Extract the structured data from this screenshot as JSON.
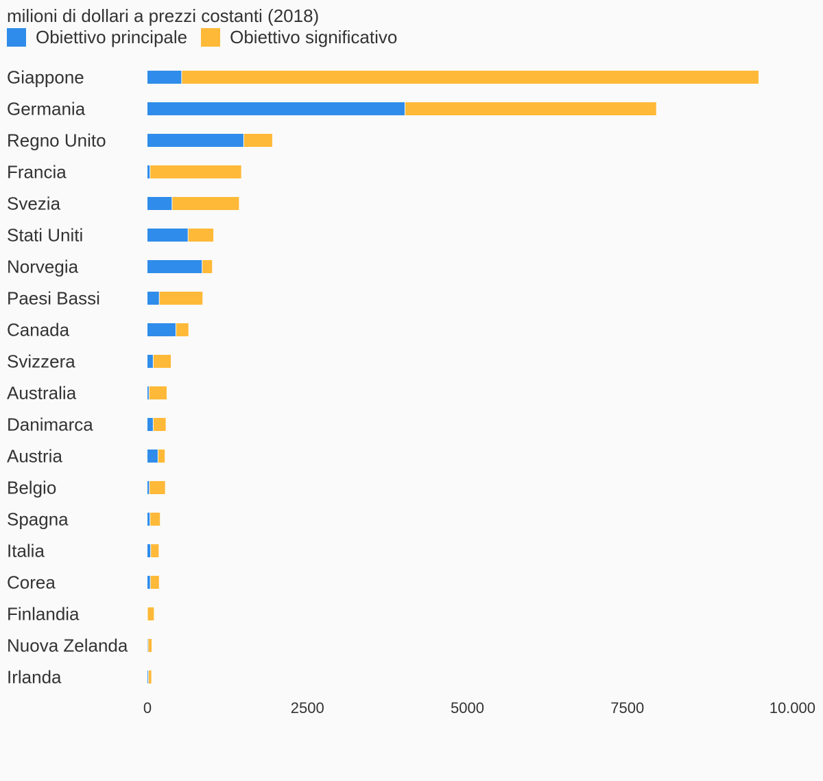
{
  "chart_data": {
    "type": "bar",
    "orientation": "horizontal",
    "stacked": true,
    "title": "milioni di dollari a prezzi costanti (2018)",
    "legend_position": "top-left",
    "grid": false,
    "categories": [
      "Giappone",
      "Germania",
      "Regno Unito",
      "Francia",
      "Svezia",
      "Stati Uniti",
      "Norvegia",
      "Paesi Bassi",
      "Canada",
      "Svizzera",
      "Australia",
      "Danimarca",
      "Austria",
      "Belgio",
      "Spagna",
      "Italia",
      "Corea",
      "Finlandia",
      "Nuova Zelanda",
      "Irlanda"
    ],
    "series": [
      {
        "name": "Obiettivo principale",
        "color": "#2f8cea",
        "values": [
          540,
          4030,
          1510,
          45,
          390,
          640,
          860,
          190,
          450,
          95,
          30,
          95,
          170,
          35,
          45,
          55,
          50,
          5,
          15,
          20
        ]
      },
      {
        "name": "Obiettivo significativo",
        "color": "#ffb938",
        "values": [
          9010,
          3920,
          440,
          1420,
          1040,
          390,
          150,
          670,
          190,
          270,
          270,
          190,
          100,
          240,
          150,
          120,
          130,
          95,
          50,
          40
        ]
      }
    ],
    "xlim": [
      0,
      10000
    ],
    "xticks": [
      0,
      2500,
      5000,
      7500,
      10000
    ],
    "xtick_labels": [
      "0",
      "2500",
      "5000",
      "7500",
      "10.000"
    ]
  }
}
